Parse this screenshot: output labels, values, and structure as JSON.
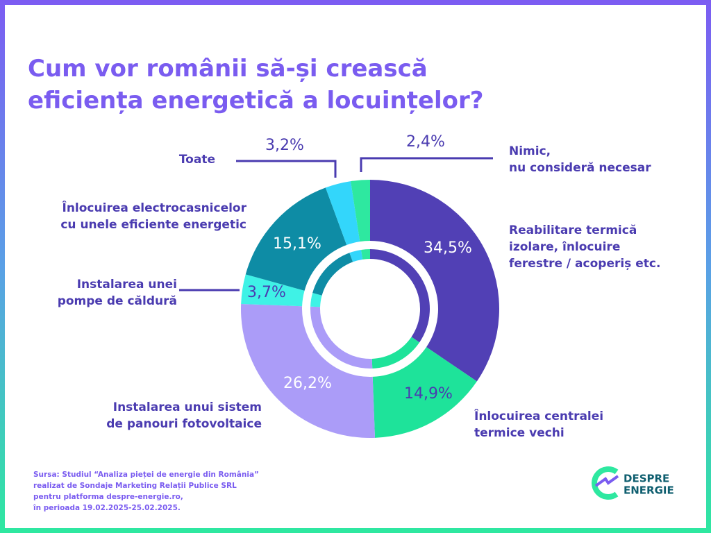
{
  "chart_data": {
    "type": "pie",
    "donut": true,
    "title": "Cum vor românii să-și crească\neficiența energetică a locuințelor?",
    "categories": [
      "Reabilitare termică\nizolare, înlocuire\nferestre / acoperiș etc.",
      "Înlocuirea centralei\ntermice vechi",
      "Instalarea unui sistem\nde panouri fotovoltaice",
      "Instalarea unei\npompe de căldură",
      "Înlocuirea electrocasnicelor\ncu unele eficiente energetic",
      "Toate",
      "Nimic,\nnu consideră necesar"
    ],
    "values": [
      34.5,
      14.9,
      26.2,
      3.7,
      15.1,
      3.2,
      2.4
    ],
    "value_labels": [
      "34,5%",
      "14,9%",
      "26,2%",
      "3,7%",
      "15,1%",
      "3,2%",
      "2,4%"
    ],
    "colors": [
      "#5140b5",
      "#1ee39a",
      "#ab9cf8",
      "#3ff2e6",
      "#0e8ca5",
      "#33d6fb",
      "#2ee8a0"
    ]
  },
  "source": [
    "Sursa: Studiul “Analiza pieței de energie din România”",
    "realizat de Sondaje Marketing Relații Publice SRL",
    "pentru platforma despre-energie.ro,",
    "în perioada 19.02.2025-25.02.2025."
  ],
  "logo": [
    "DESPRE",
    "ENERGIE"
  ]
}
